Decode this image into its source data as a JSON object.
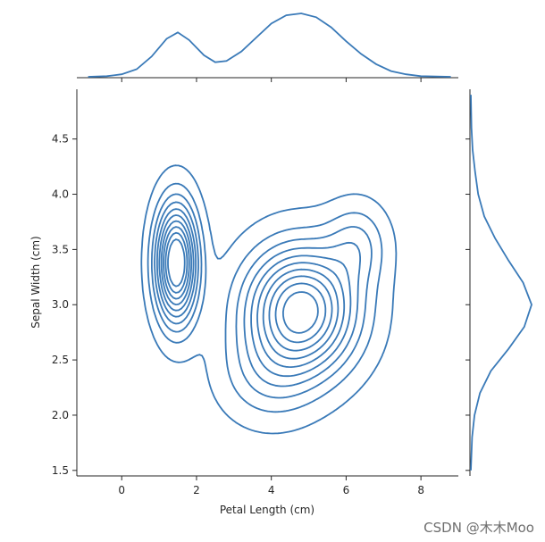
{
  "chart_data": {
    "type": "kde-jointplot",
    "xlabel": "Petal Length (cm)",
    "ylabel": "Sepal Width (cm)",
    "xlim": [
      -1.2,
      9.0
    ],
    "ylim": [
      1.45,
      4.95
    ],
    "xticks": [
      "0",
      "2",
      "4",
      "6",
      "8"
    ],
    "xtick_values": [
      0,
      2,
      4,
      6,
      8
    ],
    "yticks": [
      "1.5",
      "2.0",
      "2.5",
      "3.0",
      "3.5",
      "4.0",
      "4.5"
    ],
    "ytick_values": [
      1.5,
      2.0,
      2.5,
      3.0,
      3.5,
      4.0,
      4.5
    ],
    "line_color": "#3a7ab8",
    "grid": false,
    "contour_levels": 10,
    "joint_density_peaks": [
      {
        "x": 1.46,
        "y": 3.38,
        "level": "highest"
      },
      {
        "x": 4.8,
        "y": 2.95,
        "level": "highest"
      }
    ],
    "marginal_x": {
      "x": [
        -0.9,
        -0.4,
        0.0,
        0.4,
        0.8,
        1.2,
        1.5,
        1.8,
        2.2,
        2.5,
        2.8,
        3.2,
        3.6,
        4.0,
        4.4,
        4.8,
        5.2,
        5.6,
        6.0,
        6.4,
        6.8,
        7.2,
        7.6,
        8.0,
        8.8
      ],
      "density": [
        0.0,
        0.01,
        0.04,
        0.12,
        0.32,
        0.6,
        0.7,
        0.58,
        0.34,
        0.23,
        0.25,
        0.4,
        0.62,
        0.84,
        0.97,
        1.0,
        0.94,
        0.78,
        0.56,
        0.36,
        0.2,
        0.09,
        0.04,
        0.01,
        0.0
      ]
    },
    "marginal_y": {
      "y": [
        1.5,
        1.8,
        2.0,
        2.2,
        2.4,
        2.6,
        2.8,
        3.0,
        3.2,
        3.4,
        3.6,
        3.8,
        4.0,
        4.2,
        4.4,
        4.6,
        4.9
      ],
      "density": [
        0.0,
        0.02,
        0.06,
        0.15,
        0.33,
        0.62,
        0.88,
        1.0,
        0.86,
        0.62,
        0.4,
        0.22,
        0.12,
        0.07,
        0.03,
        0.01,
        0.0
      ]
    }
  },
  "watermark": "CSDN @木木Moo"
}
